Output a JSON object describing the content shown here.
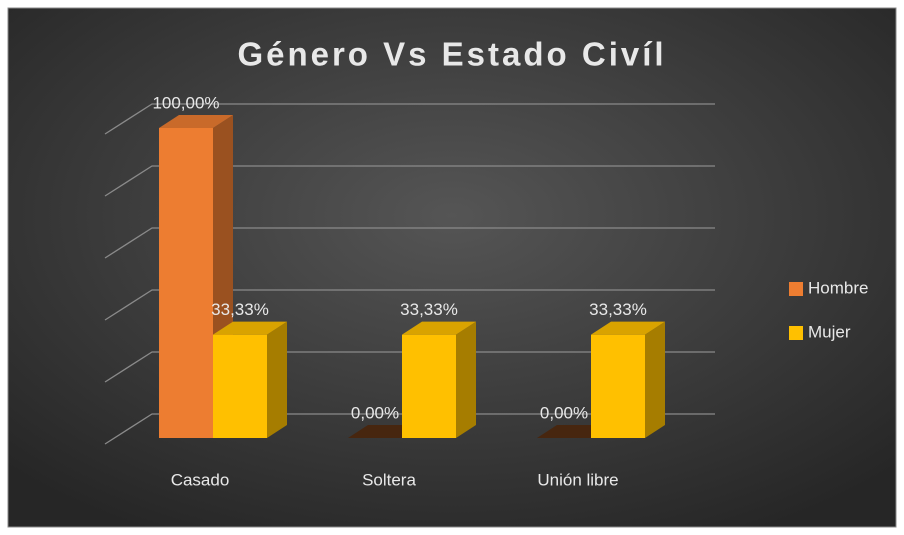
{
  "chart_data": {
    "type": "bar3d",
    "title": "Género Vs Estado Civíl",
    "categories": [
      "Casado",
      "Soltera",
      "Unión libre"
    ],
    "series": [
      {
        "name": "Hombre",
        "color": "#ED7D31",
        "values": [
          100,
          0,
          0
        ],
        "value_labels": [
          "100,00%",
          "0,00%",
          "0,00%"
        ]
      },
      {
        "name": "Mujer",
        "color": "#FFC000",
        "values": [
          33.33,
          33.33,
          33.33
        ],
        "value_labels": [
          "33,33%",
          "33,33%",
          "33,33%"
        ]
      }
    ],
    "ylim": [
      0,
      100
    ],
    "yticks": [
      0,
      20,
      40,
      60,
      80,
      100
    ],
    "grid": true,
    "legend": "right"
  }
}
